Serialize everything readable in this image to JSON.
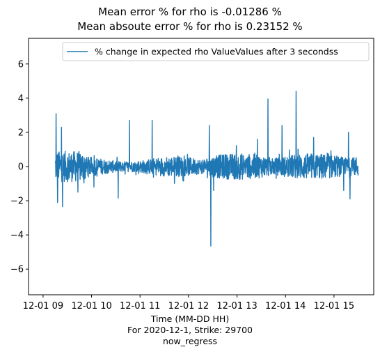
{
  "chart_data": {
    "type": "line",
    "title_lines": [
      "Mean error % for rho is -0.01286 %",
      "Mean absoute error % for rho is 0.23152 %"
    ],
    "xlabel_lines": [
      "Time (MM-DD HH)",
      "For 2020-12-1, Strike: 29700",
      "now_regress"
    ],
    "ylabel": "",
    "x_ticks": [
      "12-01 09",
      "12-01 10",
      "12-01 11",
      "12-01 12",
      "12-01 13",
      "12-01 14",
      "12-01 15"
    ],
    "y_ticks": [
      -6,
      -4,
      -2,
      0,
      2,
      4,
      6
    ],
    "ylim": [
      -7.5,
      7.5
    ],
    "xlim_hours": [
      8.7,
      15.82
    ],
    "x_range_hours": [
      9.25,
      15.5
    ],
    "legend_position": "upper right",
    "grid": false,
    "series": [
      {
        "name": "% change in expected rho ValueValues after 3 secondss",
        "color": "#1f77b4",
        "notable_points": [
          {
            "x": 9.27,
            "y": 3.1
          },
          {
            "x": 9.3,
            "y": -2.1
          },
          {
            "x": 9.38,
            "y": 2.3
          },
          {
            "x": 9.4,
            "y": -2.35
          },
          {
            "x": 9.72,
            "y": -1.5
          },
          {
            "x": 10.05,
            "y": -1.2
          },
          {
            "x": 10.55,
            "y": -1.85
          },
          {
            "x": 10.78,
            "y": 2.7
          },
          {
            "x": 11.25,
            "y": 2.7
          },
          {
            "x": 12.43,
            "y": 2.4
          },
          {
            "x": 12.46,
            "y": -4.65
          },
          {
            "x": 12.52,
            "y": -1.4
          },
          {
            "x": 13.42,
            "y": 1.6
          },
          {
            "x": 13.64,
            "y": 3.95
          },
          {
            "x": 13.93,
            "y": 2.4
          },
          {
            "x": 14.22,
            "y": 4.4
          },
          {
            "x": 14.58,
            "y": 1.7
          },
          {
            "x": 15.2,
            "y": -1.4
          },
          {
            "x": 15.3,
            "y": 2.0
          },
          {
            "x": 15.33,
            "y": -1.9
          }
        ],
        "noise_amplitude_start": 0.9,
        "noise_amplitude_mid": 0.45,
        "noise_amplitude_end": 0.7
      }
    ]
  }
}
